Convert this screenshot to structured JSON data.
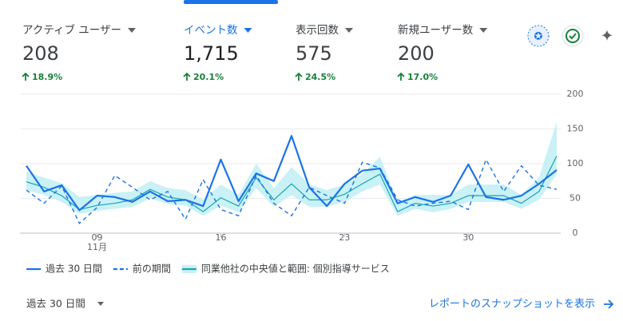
{
  "tabs": [
    {
      "label": "アクティブ ユーザー",
      "value": "208",
      "change": "18.9%"
    },
    {
      "label": "イベント数",
      "value": "1,715",
      "change": "20.1%"
    },
    {
      "label": "表示回数",
      "value": "575",
      "change": "24.5%"
    },
    {
      "label": "新規ユーザー数",
      "value": "200",
      "change": "17.0%"
    }
  ],
  "chart_data": {
    "type": "line",
    "categories": [
      null,
      null,
      null,
      null,
      "09",
      null,
      null,
      null,
      null,
      null,
      null,
      "16",
      null,
      null,
      null,
      null,
      null,
      null,
      "23",
      null,
      null,
      null,
      null,
      null,
      null,
      "30",
      null,
      null,
      null,
      null,
      null
    ],
    "x_sublabel": "11月",
    "ylim": [
      0,
      200
    ],
    "yticks": [
      0,
      50,
      100,
      150,
      200
    ],
    "grid": true,
    "series": [
      {
        "name": "過去 30 日間",
        "color": "#1a73e8",
        "style": "solid",
        "values": [
          97,
          60,
          69,
          33,
          54,
          52,
          45,
          60,
          46,
          48,
          39,
          106,
          46,
          86,
          75,
          140,
          66,
          39,
          71,
          90,
          93,
          43,
          52,
          45,
          54,
          99,
          52,
          48,
          54,
          71,
          91
        ]
      },
      {
        "name": "前の期間",
        "color": "#1a73e8",
        "style": "dashed",
        "values": [
          62,
          43,
          68,
          14,
          37,
          83,
          66,
          48,
          60,
          20,
          77,
          34,
          25,
          83,
          43,
          25,
          66,
          54,
          43,
          102,
          94,
          48,
          39,
          43,
          46,
          34,
          106,
          60,
          97,
          69,
          63
        ]
      },
      {
        "name": "同業他社の中央値と範囲: 個別指導サービス",
        "color": "#1aa5b0",
        "band_color": "#c9f1f6",
        "style": "solid",
        "values": [
          74,
          66,
          54,
          34,
          40,
          43,
          48,
          63,
          52,
          48,
          31,
          51,
          39,
          80,
          48,
          71,
          48,
          48,
          56,
          71,
          85,
          31,
          43,
          39,
          43,
          54,
          54,
          54,
          43,
          60,
          111
        ],
        "upper": [
          88,
          80,
          72,
          52,
          55,
          58,
          60,
          75,
          65,
          62,
          48,
          70,
          55,
          100,
          65,
          95,
          70,
          62,
          70,
          85,
          110,
          45,
          55,
          55,
          55,
          70,
          70,
          70,
          55,
          80,
          160
        ],
        "lower": [
          62,
          55,
          45,
          28,
          32,
          35,
          38,
          50,
          42,
          40,
          25,
          40,
          30,
          65,
          38,
          55,
          38,
          38,
          45,
          60,
          70,
          25,
          35,
          30,
          35,
          45,
          45,
          45,
          35,
          48,
          85
        ]
      }
    ]
  },
  "footer": {
    "period": "過去 30 日間",
    "link": "レポートのスナップショットを表示"
  }
}
